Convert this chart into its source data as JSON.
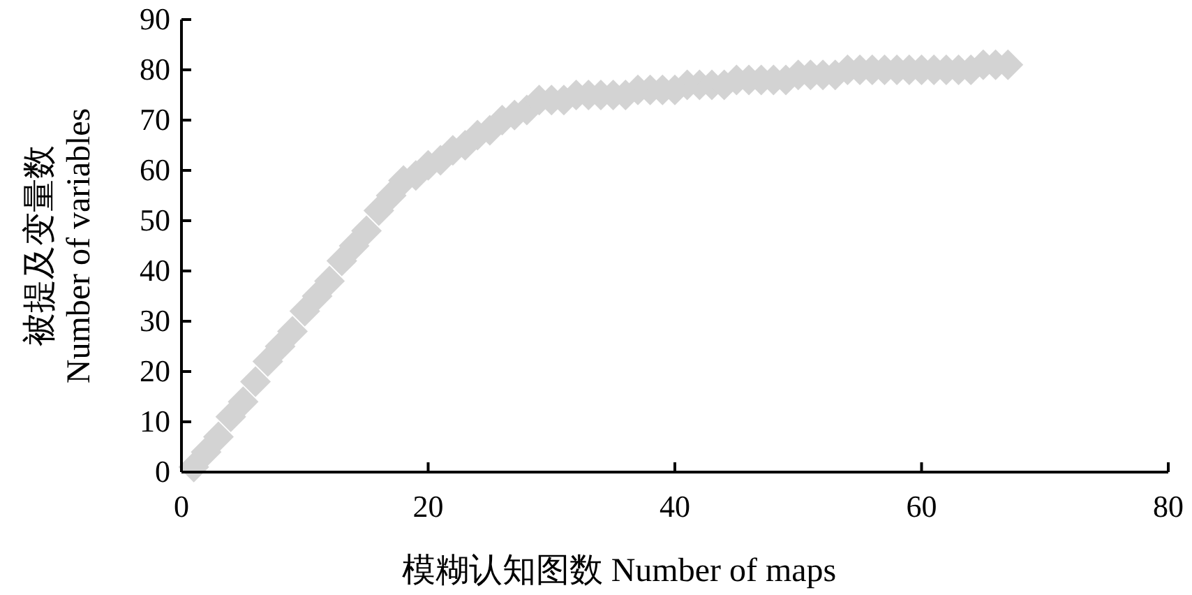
{
  "chart_data": {
    "type": "scatter",
    "xlabel": "模糊认知图数 Number of maps",
    "ylabel": "被提及变量数\nNumber of variables",
    "marker": "diamond",
    "grid": false,
    "xlim": [
      0,
      80
    ],
    "xticks": [
      0,
      20,
      40,
      60,
      80
    ],
    "ylim": [
      0,
      90
    ],
    "yticks": [
      0,
      10,
      20,
      30,
      40,
      50,
      60,
      70,
      80,
      90
    ],
    "series": [
      {
        "color": "#d3d3d3",
        "x": [
          1,
          2,
          3,
          4,
          5,
          6,
          7,
          8,
          9,
          10,
          11,
          12,
          13,
          14,
          15,
          16,
          17,
          18,
          19,
          20,
          21,
          22,
          23,
          24,
          25,
          26,
          27,
          28,
          29,
          30,
          31,
          32,
          33,
          34,
          35,
          36,
          37,
          38,
          39,
          40,
          41,
          42,
          43,
          44,
          45,
          46,
          47,
          48,
          49,
          50,
          51,
          52,
          53,
          54,
          55,
          56,
          57,
          58,
          59,
          60,
          61,
          62,
          63,
          64,
          65,
          66,
          67
        ],
        "values": [
          1,
          4,
          7,
          11,
          14,
          18,
          22,
          25,
          28,
          32,
          35,
          38,
          42,
          45,
          48,
          52,
          55,
          58,
          59,
          61,
          62,
          64,
          65,
          67,
          68,
          70,
          71,
          72,
          74,
          74,
          74,
          75,
          75,
          75,
          75,
          75,
          76,
          76,
          76,
          76,
          77,
          77,
          77,
          77,
          78,
          78,
          78,
          78,
          78,
          79,
          79,
          79,
          79,
          80,
          80,
          80,
          80,
          80,
          80,
          80,
          80,
          80,
          80,
          80,
          81,
          81,
          81
        ]
      }
    ]
  }
}
